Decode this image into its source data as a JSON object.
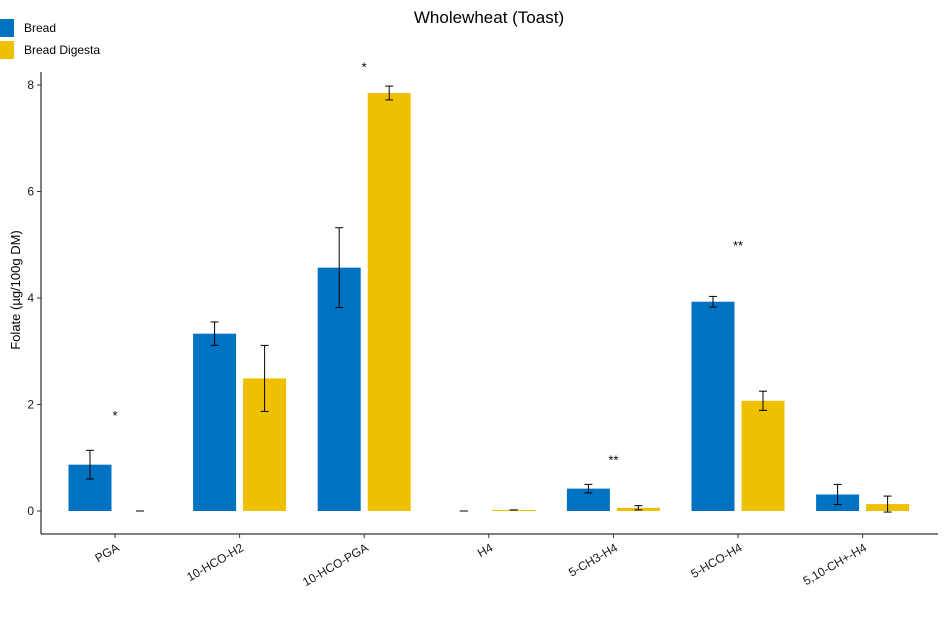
{
  "chart_data": {
    "type": "bar",
    "title": "Wholewheat (Toast)",
    "xlabel": "",
    "ylabel": "Folate (µg/100g DM)",
    "ylim": [
      -0.45,
      8.3
    ],
    "yticks": [
      0,
      2,
      4,
      6,
      8
    ],
    "grid": false,
    "legend_position": "top-left",
    "categories": [
      "PGA",
      "10-HCO-H2",
      "10-HCO-PGA",
      "H4",
      "5-CH3-H4",
      "5-HCO-H4",
      "5,10-CH+-H4"
    ],
    "series": [
      {
        "name": "Bread",
        "color": "#0072C2",
        "values": [
          0.87,
          3.33,
          4.57,
          0.0,
          0.42,
          3.93,
          0.31
        ],
        "errors": [
          0.27,
          0.22,
          0.75,
          0.0,
          0.08,
          0.1,
          0.19
        ]
      },
      {
        "name": "Bread Digesta",
        "color": "#EFC000",
        "values": [
          0.0,
          2.49,
          7.85,
          0.02,
          0.06,
          2.07,
          0.13
        ],
        "errors": [
          0.0,
          0.62,
          0.13,
          0.0,
          0.04,
          0.18,
          0.15
        ]
      }
    ],
    "annotations": [
      {
        "category": "PGA",
        "text": "*",
        "y": 1.8
      },
      {
        "category": "10-HCO-PGA",
        "text": "*",
        "y": 8.35
      },
      {
        "category": "5-CH3-H4",
        "text": "**",
        "y": 0.97
      },
      {
        "category": "5-HCO-H4",
        "text": "**",
        "y": 5.0
      }
    ]
  }
}
